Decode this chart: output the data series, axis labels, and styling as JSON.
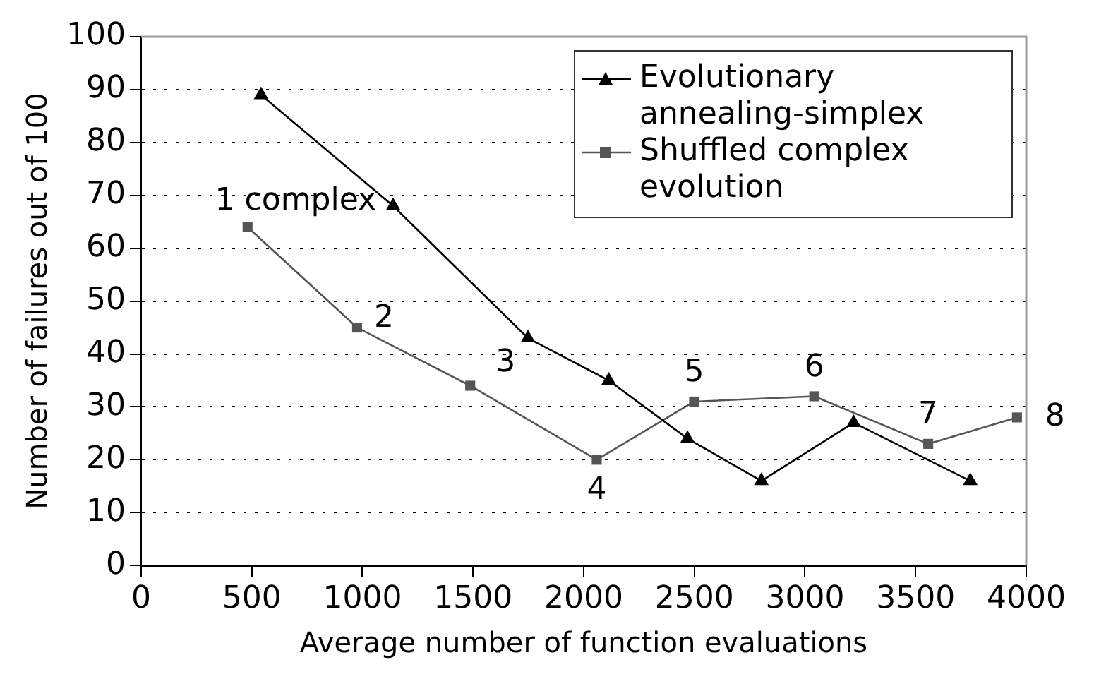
{
  "chart_data": {
    "type": "line",
    "xlabel": "Average number of function evaluations",
    "ylabel": "Number of failures out of 100",
    "series": [
      {
        "name": "Evolutionary annealing-simplex",
        "color": "#000000",
        "marker": "triangle",
        "x": [
          542,
          1139,
          1748,
          2113,
          2469,
          2803,
          3220,
          3747
        ],
        "values": [
          89,
          68,
          43,
          35,
          24,
          16,
          27,
          16
        ]
      },
      {
        "name": "Shuffled complex evolution",
        "color": "#555555",
        "marker": "square",
        "x": [
          481,
          976,
          1487,
          2059,
          2499,
          3042,
          3557,
          3958
        ],
        "values": [
          64,
          45,
          34,
          20,
          31,
          32,
          23,
          28
        ]
      }
    ],
    "xlim": [
      0,
      4000
    ],
    "xticks": [
      0,
      500,
      1000,
      1500,
      2000,
      2500,
      3000,
      3500,
      4000
    ],
    "ylim": [
      0,
      100
    ],
    "yticks": [
      0,
      10,
      20,
      30,
      40,
      50,
      60,
      70,
      80,
      90,
      100
    ],
    "grid": "y",
    "legend": "top right",
    "line_style": "solid",
    "annotations": [
      {
        "text": "1 complex",
        "x": 481,
        "y": 64
      },
      {
        "text": "2",
        "x": 976,
        "y": 45
      },
      {
        "text": "3",
        "x": 1487,
        "y": 34
      },
      {
        "text": "4",
        "x": 2059,
        "y": 20
      },
      {
        "text": "5",
        "x": 2499,
        "y": 31
      },
      {
        "text": "6",
        "x": 3042,
        "y": 32
      },
      {
        "text": "7",
        "x": 3557,
        "y": 23
      },
      {
        "text": "8",
        "x": 3958,
        "y": 28
      }
    ]
  }
}
